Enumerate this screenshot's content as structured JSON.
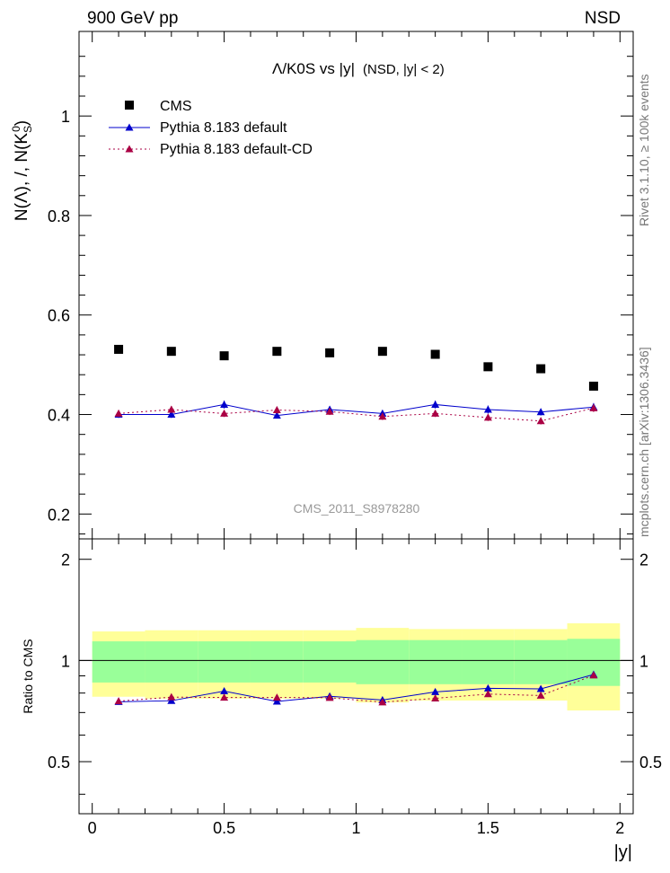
{
  "chart_data": {
    "type": "scatter",
    "header_left": "900 GeV pp",
    "header_right": "NSD",
    "title_main": "Λ/K0S vs |y|",
    "title_sub": "(NSD, |y| < 2)",
    "ylabel": "N(Λ), /, N(K",
    "ylabel_sup": "0",
    "ylabel_sub": "S",
    "ylabel_close": ")",
    "ratio_ylabel": "Ratio to CMS",
    "xlabel": "|y|",
    "analysis_label": "CMS_2011_S8978280",
    "side_label_top": "Rivet 3.1.10, ≥ 100k events",
    "side_label_bottom": "mcplots.cern.ch [arXiv:1306.3436]",
    "xlim": [
      -0.05,
      2.05
    ],
    "ylim_main": [
      0.15,
      1.17
    ],
    "ylim_ratio": [
      0.35,
      2.3
    ],
    "x_ticks": [
      0,
      0.5,
      1,
      1.5,
      2
    ],
    "x_tick_labels": [
      "0",
      "0.5",
      "1",
      "1.5",
      "2"
    ],
    "y_ticks_main": [
      0.2,
      0.4,
      0.6,
      0.8,
      1.0
    ],
    "y_tick_labels_main": [
      "0.2",
      "0.4",
      "0.6",
      "0.8",
      "1"
    ],
    "y_ticks_ratio": [
      0.5,
      1,
      2
    ],
    "y_tick_labels_ratio": [
      "0.5",
      "1",
      "2"
    ],
    "x": [
      0.1,
      0.3,
      0.5,
      0.7,
      0.9,
      1.1,
      1.3,
      1.5,
      1.7,
      1.9
    ],
    "bin_edges": [
      0.0,
      0.2,
      0.4,
      0.6,
      0.8,
      1.0,
      1.2,
      1.4,
      1.6,
      1.8,
      2.0
    ],
    "cms_values": [
      0.531,
      0.527,
      0.518,
      0.527,
      0.524,
      0.527,
      0.521,
      0.496,
      0.492,
      0.457
    ],
    "band_inner_ratio": [
      0.14,
      0.14,
      0.14,
      0.14,
      0.14,
      0.15,
      0.15,
      0.15,
      0.15,
      0.16
    ],
    "band_outer_ratio": [
      0.22,
      0.23,
      0.23,
      0.23,
      0.23,
      0.25,
      0.24,
      0.24,
      0.24,
      0.29
    ],
    "series": [
      {
        "name": "Pythia 8.183 default",
        "color": "#0000cc",
        "dash": "none",
        "values": [
          0.4,
          0.4,
          0.42,
          0.398,
          0.41,
          0.402,
          0.42,
          0.41,
          0.405,
          0.415
        ],
        "errors": [
          0.007,
          0.007,
          0.008,
          0.006,
          0.007,
          0.007,
          0.008,
          0.008,
          0.007,
          0.008
        ]
      },
      {
        "name": "Pythia 8.183 default-CD",
        "color": "#aa0044",
        "dash": "2,3",
        "values": [
          0.402,
          0.41,
          0.402,
          0.409,
          0.406,
          0.396,
          0.402,
          0.394,
          0.387,
          0.413
        ],
        "errors": [
          0.007,
          0.007,
          0.007,
          0.007,
          0.007,
          0.007,
          0.007,
          0.007,
          0.007,
          0.008
        ]
      }
    ],
    "legend": {
      "data_label": "CMS",
      "position": "top-left"
    }
  }
}
